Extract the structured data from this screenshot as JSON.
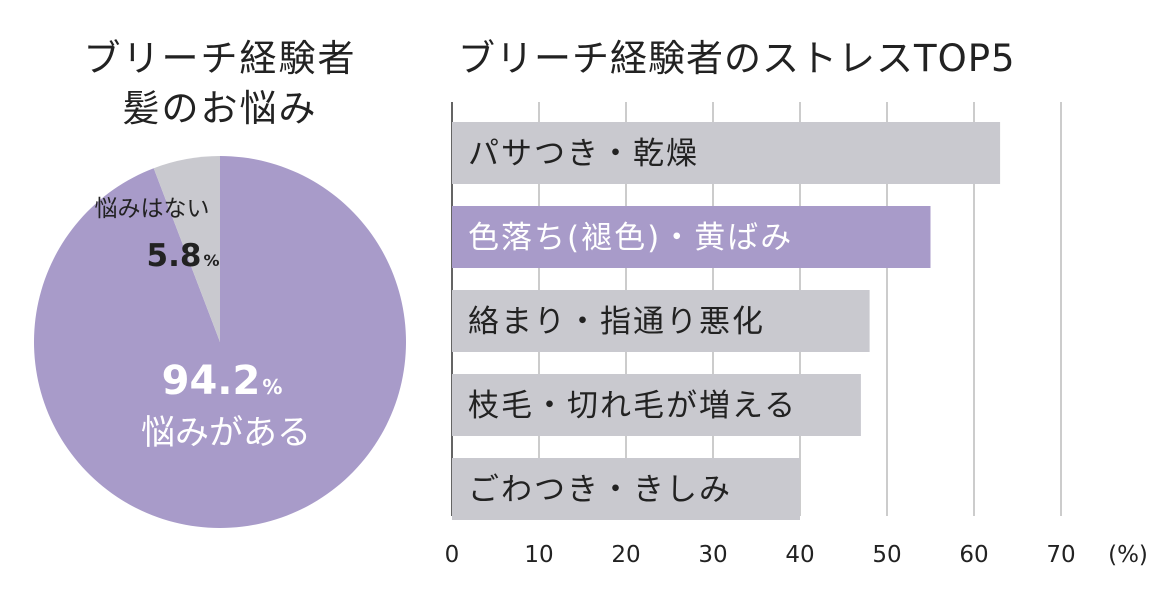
{
  "charts": {
    "pie": {
      "title_line1": "ブリーチ経験者",
      "title_line2": "髪のお悩み"
    },
    "bar": {
      "title": "ブリーチ経験者のストレスTOP5"
    }
  },
  "chart_data": [
    {
      "type": "pie",
      "title": "ブリーチ経験者 髪のお悩み",
      "slices": [
        {
          "label": "悩みがある",
          "value": 94.2,
          "value_text": "94.2",
          "unit": "%",
          "color": "#a89bc9"
        },
        {
          "label": "悩みはない",
          "value": 5.8,
          "value_text": "5.8",
          "unit": "%",
          "color": "#c9c9cf"
        }
      ]
    },
    {
      "type": "bar",
      "orientation": "horizontal",
      "title": "ブリーチ経験者のストレスTOP5",
      "categories": [
        "パサつき・乾燥",
        "色落ち(褪色)・黄ばみ",
        "絡まり・指通り悪化",
        "枝毛・切れ毛が増える",
        "ごわつき・きしみ"
      ],
      "values": [
        63,
        55,
        48,
        47,
        40
      ],
      "highlight_index": 1,
      "bar_color": "#c9c9cf",
      "highlight_color": "#a89bc9",
      "xlim": [
        0,
        70
      ],
      "xticks": [
        "0",
        "10",
        "20",
        "30",
        "40",
        "50",
        "60",
        "70"
      ],
      "unit_label": "(%)",
      "grid": true
    }
  ]
}
